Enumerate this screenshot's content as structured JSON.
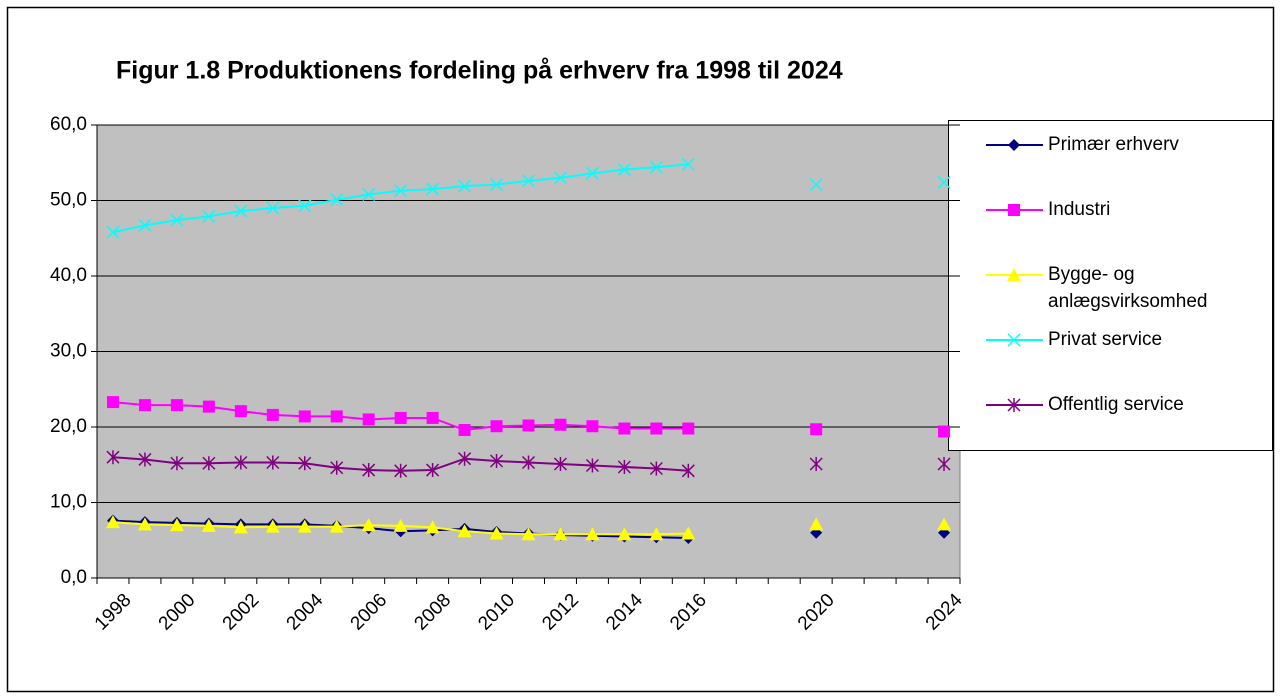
{
  "chart_data": {
    "type": "line",
    "title": "Figur 1.8 Produktionens fordeling på erhverv fra 1998 til 2024",
    "categories": [
      "1998",
      null,
      "2000",
      null,
      "2002",
      null,
      "2004",
      null,
      "2006",
      null,
      "2008",
      null,
      "2010",
      null,
      "2012",
      null,
      "2014",
      null,
      "2016",
      null,
      null,
      null,
      "2020",
      null,
      null,
      null,
      "2024"
    ],
    "ylim": [
      0,
      60
    ],
    "yticks": [
      {
        "value": 0,
        "label": "0,0"
      },
      {
        "value": 10,
        "label": "10,0"
      },
      {
        "value": 20,
        "label": "20,0"
      },
      {
        "value": 30,
        "label": "30,0"
      },
      {
        "value": 40,
        "label": "40,0"
      },
      {
        "value": 50,
        "label": "50,0"
      },
      {
        "value": 60,
        "label": "60,0"
      }
    ],
    "grid": true,
    "legend": "right",
    "series": [
      {
        "name": "Primær erhverv",
        "color": "#000080",
        "marker": "diamond",
        "values": [
          7.6,
          7.4,
          7.3,
          7.2,
          7.1,
          7.1,
          7.1,
          6.9,
          6.6,
          6.2,
          6.3,
          6.5,
          6.1,
          5.9,
          5.7,
          5.6,
          5.5,
          5.4,
          5.3,
          null,
          null,
          null,
          6.0,
          null,
          null,
          null,
          6.0
        ]
      },
      {
        "name": "Industri",
        "color": "#ff00ff",
        "marker": "square",
        "values": [
          23.3,
          22.9,
          22.9,
          22.7,
          22.1,
          21.6,
          21.4,
          21.4,
          21.0,
          21.2,
          21.2,
          19.6,
          20.1,
          20.2,
          20.3,
          20.1,
          19.8,
          19.8,
          19.8,
          null,
          null,
          null,
          19.7,
          null,
          null,
          null,
          19.4
        ]
      },
      {
        "name": "Bygge- og anlægsvirksomhed",
        "color": "#ffff00",
        "marker": "triangle",
        "values": [
          7.4,
          7.1,
          7.0,
          6.9,
          6.7,
          6.8,
          6.8,
          6.8,
          7.0,
          6.9,
          6.7,
          6.2,
          5.9,
          5.8,
          5.8,
          5.8,
          5.8,
          5.8,
          5.9,
          null,
          null,
          null,
          7.1,
          null,
          null,
          null,
          7.1
        ]
      },
      {
        "name": "Privat service",
        "color": "#00ffff",
        "marker": "x",
        "values": [
          45.8,
          46.7,
          47.4,
          47.9,
          48.6,
          49.0,
          49.3,
          50.1,
          50.8,
          51.3,
          51.5,
          51.9,
          52.1,
          52.6,
          53.0,
          53.6,
          54.1,
          54.4,
          54.8,
          null,
          null,
          null,
          52.1,
          null,
          null,
          null,
          52.4
        ]
      },
      {
        "name": "Offentlig service",
        "color": "#800080",
        "marker": "star",
        "values": [
          16.0,
          15.7,
          15.2,
          15.2,
          15.3,
          15.3,
          15.2,
          14.6,
          14.3,
          14.2,
          14.3,
          15.8,
          15.5,
          15.3,
          15.1,
          14.9,
          14.7,
          14.5,
          14.2,
          null,
          null,
          null,
          15.1,
          null,
          null,
          null,
          15.1
        ]
      }
    ]
  }
}
